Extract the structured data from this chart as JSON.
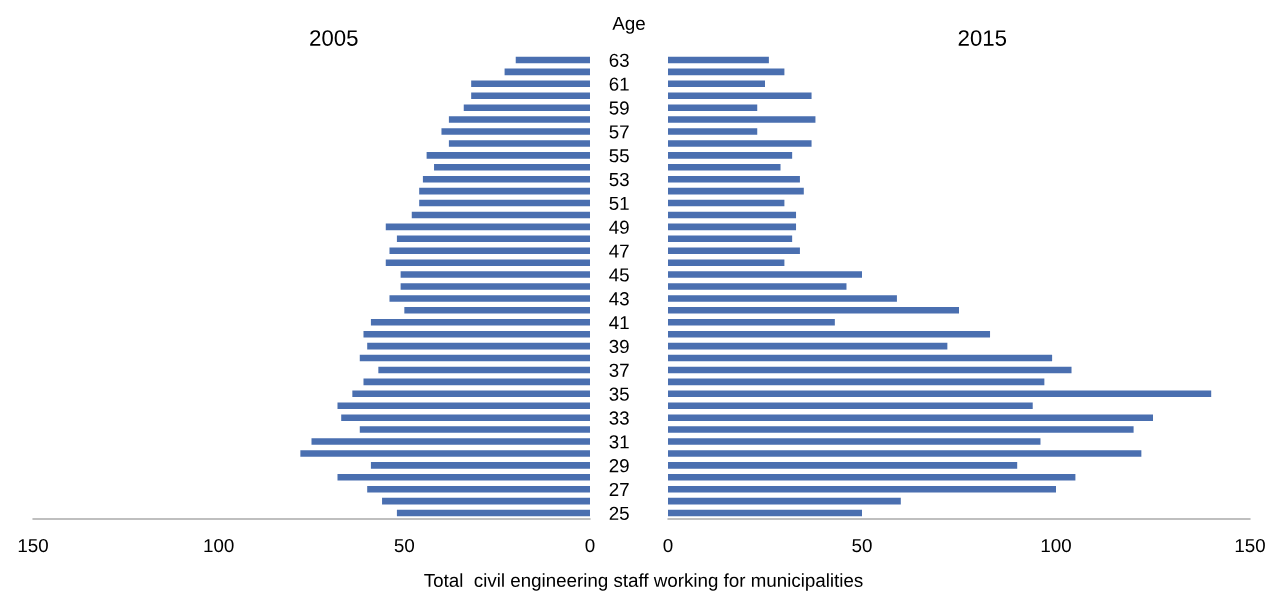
{
  "chart_data": [
    {
      "type": "bar",
      "orientation": "horizontal",
      "title": "2005",
      "ylabel": "Age",
      "xlabel": "Total  civil engineering staff working for municipalities",
      "color": "#4a6fb0",
      "categories": [
        "63",
        null,
        "61",
        null,
        "59",
        null,
        "57",
        null,
        "55",
        null,
        "53",
        null,
        "51",
        null,
        "49",
        null,
        "47",
        null,
        "45",
        null,
        "43",
        null,
        "41",
        null,
        "39",
        null,
        "37",
        null,
        "35",
        null,
        "33",
        null,
        "31",
        null,
        "29",
        null,
        "27",
        null,
        "25"
      ],
      "values": [
        20,
        23,
        32,
        32,
        34,
        38,
        40,
        38,
        44,
        42,
        45,
        46,
        46,
        48,
        55,
        52,
        54,
        55,
        51,
        51,
        54,
        50,
        59,
        61,
        60,
        62,
        57,
        61,
        64,
        68,
        67,
        62,
        75,
        78,
        59,
        68,
        60,
        56,
        52
      ],
      "xlim": [
        150,
        0
      ],
      "xticks": [
        150,
        100,
        50,
        0
      ],
      "grid": false
    },
    {
      "type": "bar",
      "orientation": "horizontal",
      "title": "2015",
      "color": "#4a6fb0",
      "tick_labels": "x",
      "categories": [
        "63",
        null,
        "61",
        null,
        "59",
        null,
        "57",
        null,
        "55",
        null,
        "53",
        null,
        "51",
        null,
        "49",
        null,
        "47",
        null,
        "45",
        null,
        "43",
        null,
        "41",
        null,
        "39",
        null,
        "37",
        null,
        "35",
        null,
        "33",
        null,
        "31",
        null,
        "29",
        null,
        "27",
        null,
        "25"
      ],
      "values": [
        26,
        30,
        25,
        37,
        23,
        38,
        23,
        37,
        32,
        29,
        34,
        35,
        30,
        33,
        33,
        32,
        34,
        30,
        50,
        46,
        59,
        75,
        43,
        83,
        72,
        99,
        104,
        97,
        140,
        94,
        125,
        120,
        96,
        122,
        90,
        105,
        100,
        60,
        50
      ],
      "xlim": [
        0,
        150
      ],
      "xticks": [
        0,
        50,
        100,
        150
      ],
      "grid": false
    }
  ]
}
